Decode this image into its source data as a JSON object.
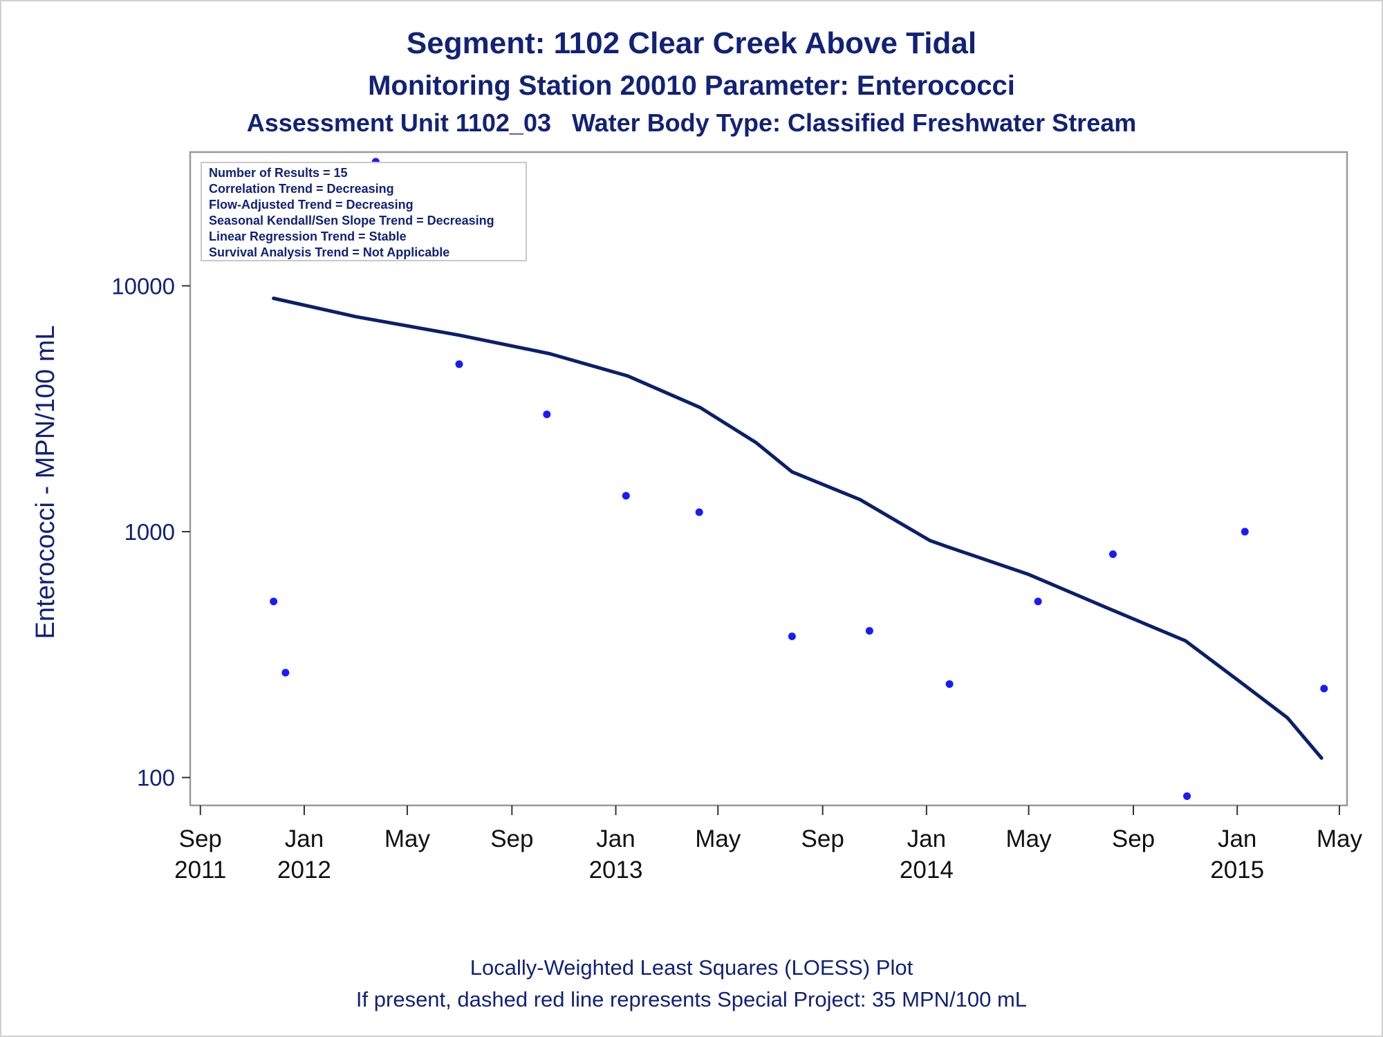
{
  "title": "Segment: 1102  Clear Creek Above Tidal",
  "subtitle1": "Monitoring Station 20010 Parameter: Enterococci",
  "subtitle2": "Assessment Unit 1102_03   Water Body Type: Classified Freshwater Stream",
  "footnote1": "Locally-Weighted Least Squares (LOESS) Plot",
  "footnote2": "If present, dashed red line represents Special Project: 35 MPN/100 mL",
  "legend_lines": [
    "Number of Results = 15",
    "Correlation Trend = Decreasing",
    "Flow-Adjusted Trend = Decreasing",
    "Seasonal Kendall/Sen Slope Trend = Decreasing",
    "Linear Regression Trend = Stable",
    "Survival Analysis Trend = Not Applicable"
  ],
  "colors": {
    "text": "#112277",
    "points": "#1a1aff",
    "line": "#0b1f6b",
    "frame": "#999999"
  },
  "chart_data": {
    "type": "scatter",
    "ylabel": "Enterococci - MPN/100 mL",
    "yscale": "log",
    "ylim": [
      77,
      35000
    ],
    "xlim": [
      "2011-08-20",
      "2015-05-10"
    ],
    "yticks": [
      100,
      1000,
      10000
    ],
    "xticks": [
      {
        "date": "2011-09-01",
        "label": [
          "Sep",
          "2011"
        ]
      },
      {
        "date": "2012-01-01",
        "label": [
          "Jan",
          "2012"
        ]
      },
      {
        "date": "2012-05-01",
        "label": [
          "May"
        ]
      },
      {
        "date": "2012-09-01",
        "label": [
          "Sep"
        ]
      },
      {
        "date": "2013-01-01",
        "label": [
          "Jan",
          "2013"
        ]
      },
      {
        "date": "2013-05-01",
        "label": [
          "May"
        ]
      },
      {
        "date": "2013-09-01",
        "label": [
          "Sep"
        ]
      },
      {
        "date": "2014-01-01",
        "label": [
          "Jan",
          "2014"
        ]
      },
      {
        "date": "2014-05-01",
        "label": [
          "May"
        ]
      },
      {
        "date": "2014-09-01",
        "label": [
          "Sep"
        ]
      },
      {
        "date": "2015-01-01",
        "label": [
          "Jan",
          "2015"
        ]
      },
      {
        "date": "2015-05-01",
        "label": [
          "May"
        ]
      }
    ],
    "points": [
      {
        "x": "2011-11-26",
        "y": 520
      },
      {
        "x": "2011-12-10",
        "y": 267
      },
      {
        "x": "2012-03-25",
        "y": 32000
      },
      {
        "x": "2012-07-01",
        "y": 4800
      },
      {
        "x": "2012-10-12",
        "y": 3000
      },
      {
        "x": "2013-01-13",
        "y": 1400
      },
      {
        "x": "2013-04-09",
        "y": 1200
      },
      {
        "x": "2013-07-27",
        "y": 375
      },
      {
        "x": "2013-10-26",
        "y": 395
      },
      {
        "x": "2014-01-28",
        "y": 240
      },
      {
        "x": "2014-05-12",
        "y": 520
      },
      {
        "x": "2014-08-08",
        "y": 810
      },
      {
        "x": "2014-11-03",
        "y": 84
      },
      {
        "x": "2015-01-10",
        "y": 1000
      },
      {
        "x": "2015-04-13",
        "y": 230
      }
    ],
    "series": [
      {
        "type": "loess",
        "points": [
          {
            "x": "2011-11-26",
            "y": 8900
          },
          {
            "x": "2012-03-01",
            "y": 7500
          },
          {
            "x": "2012-07-01",
            "y": 6300
          },
          {
            "x": "2012-10-15",
            "y": 5300
          },
          {
            "x": "2013-01-15",
            "y": 4300
          },
          {
            "x": "2013-04-10",
            "y": 3200
          },
          {
            "x": "2013-06-15",
            "y": 2300
          },
          {
            "x": "2013-07-27",
            "y": 1750
          },
          {
            "x": "2013-10-15",
            "y": 1350
          },
          {
            "x": "2014-01-05",
            "y": 920
          },
          {
            "x": "2014-01-25",
            "y": 870
          },
          {
            "x": "2014-05-01",
            "y": 670
          },
          {
            "x": "2014-08-01",
            "y": 490
          },
          {
            "x": "2014-11-01",
            "y": 360
          },
          {
            "x": "2015-01-01",
            "y": 250
          },
          {
            "x": "2015-03-01",
            "y": 175
          },
          {
            "x": "2015-04-10",
            "y": 120
          }
        ]
      }
    ]
  }
}
